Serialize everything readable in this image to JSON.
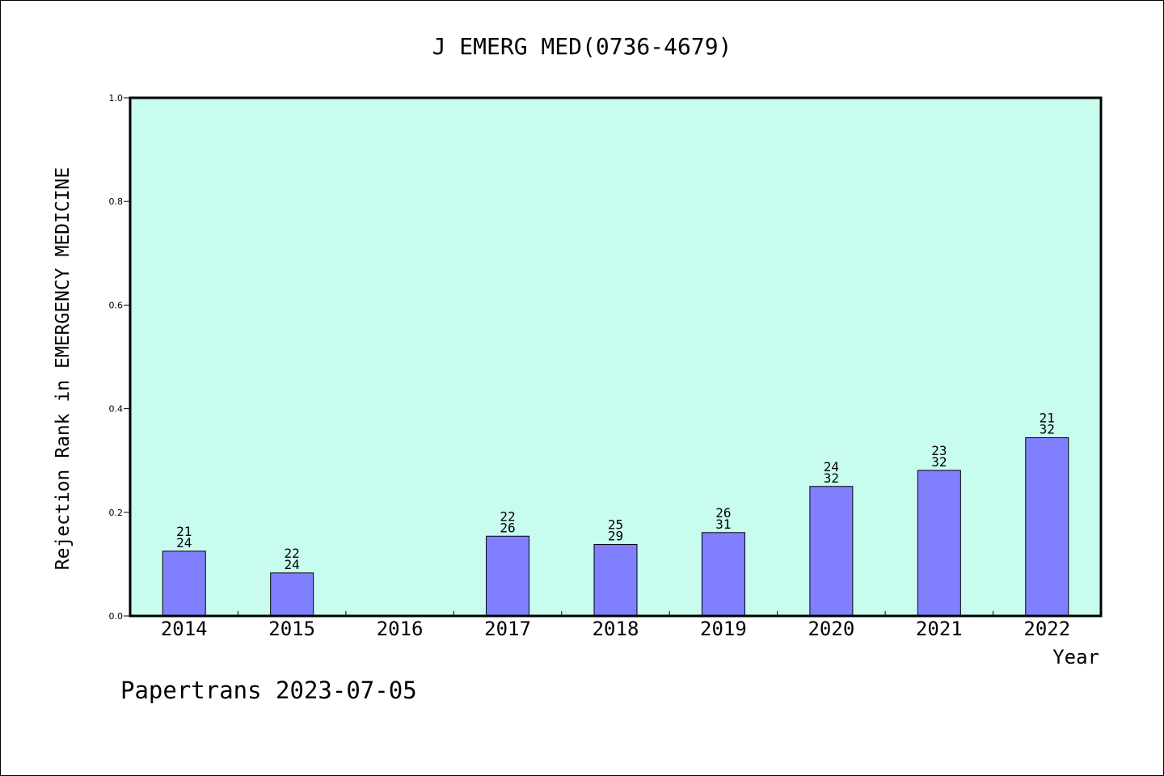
{
  "chart_data": {
    "type": "bar",
    "title": "J EMERG MED(0736-4679)",
    "xlabel": "Year",
    "ylabel": "Rejection Rank in EMERGENCY MEDICINE",
    "ylim": [
      0,
      1.0
    ],
    "yticks": [
      "0.0",
      "0.2",
      "0.4",
      "0.6",
      "0.8",
      "1.0"
    ],
    "categories": [
      "2014",
      "2015",
      "2016",
      "2017",
      "2018",
      "2019",
      "2020",
      "2021",
      "2022"
    ],
    "values": [
      0.125,
      0.083,
      null,
      0.154,
      0.138,
      0.161,
      0.25,
      0.281,
      0.344
    ],
    "bar_labels": [
      [
        "21",
        "24"
      ],
      [
        "22",
        "24"
      ],
      null,
      [
        "22",
        "26"
      ],
      [
        "25",
        "29"
      ],
      [
        "26",
        "31"
      ],
      [
        "24",
        "32"
      ],
      [
        "23",
        "32"
      ],
      [
        "21",
        "32"
      ]
    ],
    "grid": false,
    "colors": {
      "plot_background": "#c8fcee",
      "bar_fill": "#8080ff",
      "bar_stroke": "#000000"
    }
  },
  "footer": "Papertrans 2023-07-05"
}
